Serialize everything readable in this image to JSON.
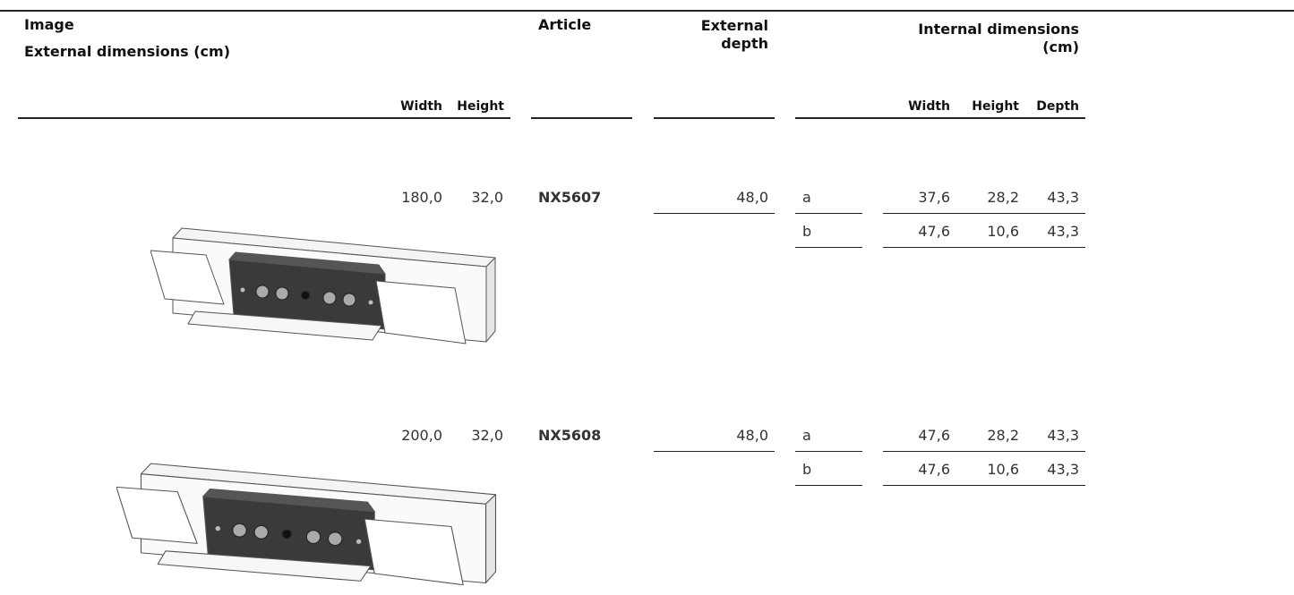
{
  "header": {
    "image_title": "Image",
    "external_title": "External dimensions (cm)",
    "external_width": "Width",
    "external_height": "Height",
    "article": "Article",
    "external_depth": "External depth",
    "internal_title": "Internal dimensions (cm)",
    "internal_width": "Width",
    "internal_height": "Height",
    "internal_depth": "Depth"
  },
  "rows": [
    {
      "width": "180,0",
      "height": "32,0",
      "article": "NX5607",
      "depth": "48,0",
      "compartments": [
        {
          "label": "a",
          "width": "37,6",
          "height": "28,2",
          "depth": "43,3"
        },
        {
          "label": "b",
          "width": "47,6",
          "height": "10,6",
          "depth": "43,3"
        }
      ]
    },
    {
      "width": "200,0",
      "height": "32,0",
      "article": "NX5608",
      "depth": "48,0",
      "compartments": [
        {
          "label": "a",
          "width": "47,6",
          "height": "28,2",
          "depth": "43,3"
        },
        {
          "label": "b",
          "width": "47,6",
          "height": "10,6",
          "depth": "43,3"
        }
      ]
    }
  ]
}
